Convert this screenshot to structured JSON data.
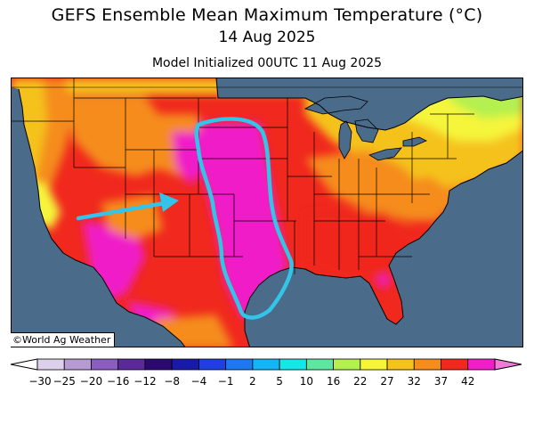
{
  "title": "GEFS Ensemble Mean Maximum Temperature (°C)",
  "valid_date": "14 Aug 2025",
  "init_text": "Model Initialized 00UTC 11 Aug 2025",
  "credit": "©World Ag Weather",
  "colors": {
    "ocean": "#4a6b8a",
    "lakes": "#4a6b8a",
    "annotation": "#33c4e8"
  },
  "colorbar": {
    "ticks": [
      "−30",
      "−25",
      "−20",
      "−16",
      "−12",
      "−8",
      "−4",
      "−1",
      "2",
      "5",
      "10",
      "16",
      "22",
      "27",
      "32",
      "37",
      "42"
    ],
    "colors": [
      "#dcd0ea",
      "#b59bd2",
      "#8a5ec0",
      "#5a2a9a",
      "#2a0a70",
      "#1a1aa8",
      "#1f3fe0",
      "#1e78f0",
      "#16b4f5",
      "#17e6e6",
      "#5ee6a0",
      "#b4f050",
      "#f5f53a",
      "#f5c21e",
      "#f58c1e",
      "#f0281e",
      "#f01ec8"
    ]
  },
  "annotations": [
    {
      "type": "arrow",
      "label": "arrow-pointing-to-plains"
    },
    {
      "type": "outline",
      "label": "central-plains-heat-outline"
    }
  ]
}
